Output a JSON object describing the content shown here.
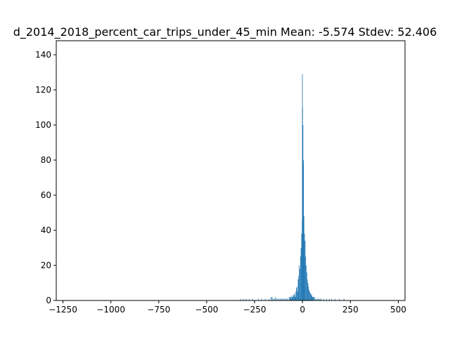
{
  "chart_data": {
    "type": "bar",
    "title": "d_2014_2018_percent_car_trips_under_45_min  Mean: -5.574  Stdev: 52.406",
    "xlabel": "",
    "ylabel": "",
    "xlim": [
      -1285,
      535
    ],
    "ylim": [
      0,
      148
    ],
    "x_ticks": [
      -1250,
      -1000,
      -750,
      -500,
      -250,
      0,
      250,
      500
    ],
    "x_tick_labels": [
      "−1250",
      "−1000",
      "−750",
      "−500",
      "−250",
      "0",
      "250",
      "500"
    ],
    "y_ticks": [
      0,
      20,
      40,
      60,
      80,
      100,
      120,
      140
    ],
    "y_tick_labels": [
      "0",
      "20",
      "40",
      "60",
      "80",
      "100",
      "120",
      "140"
    ],
    "bar_color": "#1f77b4",
    "bin_width": 3,
    "bins": [
      [
        -325,
        1
      ],
      [
        -310,
        1
      ],
      [
        -295,
        1
      ],
      [
        -280,
        1
      ],
      [
        -262,
        1
      ],
      [
        -232,
        1
      ],
      [
        -214,
        1
      ],
      [
        -196,
        1
      ],
      [
        -178,
        1
      ],
      [
        -166,
        2
      ],
      [
        -160,
        2
      ],
      [
        -154,
        1
      ],
      [
        -148,
        1
      ],
      [
        -142,
        2
      ],
      [
        -136,
        1
      ],
      [
        -130,
        1
      ],
      [
        -124,
        1
      ],
      [
        -118,
        1
      ],
      [
        -112,
        1
      ],
      [
        -106,
        1
      ],
      [
        -100,
        1
      ],
      [
        -94,
        1
      ],
      [
        -88,
        1
      ],
      [
        -82,
        1
      ],
      [
        -76,
        1
      ],
      [
        -69,
        2
      ],
      [
        -66,
        2
      ],
      [
        -63,
        2
      ],
      [
        -60,
        1
      ],
      [
        -57,
        3
      ],
      [
        -54,
        2
      ],
      [
        -51,
        2
      ],
      [
        -48,
        3
      ],
      [
        -45,
        4
      ],
      [
        -42,
        3
      ],
      [
        -39,
        2
      ],
      [
        -36,
        5
      ],
      [
        -33,
        7
      ],
      [
        -30,
        8
      ],
      [
        -27,
        5
      ],
      [
        -24,
        12
      ],
      [
        -21,
        14
      ],
      [
        -18,
        20
      ],
      [
        -15,
        18
      ],
      [
        -12,
        25
      ],
      [
        -9,
        30
      ],
      [
        -6,
        38
      ],
      [
        -3,
        45
      ],
      [
        0,
        80
      ],
      [
        3,
        78
      ],
      [
        6,
        48
      ],
      [
        9,
        38
      ],
      [
        12,
        34
      ],
      [
        15,
        25
      ],
      [
        18,
        20
      ],
      [
        21,
        16
      ],
      [
        24,
        12
      ],
      [
        27,
        10
      ],
      [
        30,
        8
      ],
      [
        33,
        6
      ],
      [
        36,
        5
      ],
      [
        39,
        4
      ],
      [
        42,
        4
      ],
      [
        45,
        3
      ],
      [
        48,
        3
      ],
      [
        51,
        2
      ],
      [
        54,
        2
      ],
      [
        57,
        2
      ],
      [
        60,
        2
      ],
      [
        66,
        1
      ],
      [
        72,
        1
      ],
      [
        78,
        1
      ],
      [
        84,
        1
      ],
      [
        90,
        1
      ],
      [
        96,
        1
      ],
      [
        110,
        1
      ],
      [
        124,
        1
      ],
      [
        138,
        1
      ],
      [
        150,
        1
      ],
      [
        168,
        1
      ],
      [
        190,
        1
      ],
      [
        215,
        1
      ]
    ],
    "peak_bins": [
      [
        -2,
        129
      ],
      [
        -1,
        110
      ],
      [
        1,
        100
      ],
      [
        4,
        80
      ]
    ],
    "grid": false,
    "legend": "none"
  }
}
